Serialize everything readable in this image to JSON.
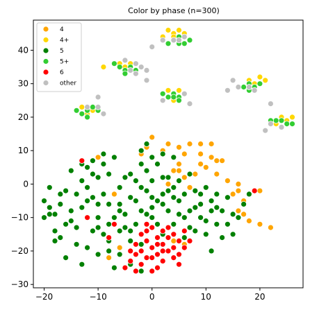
{
  "chart_data": {
    "type": "scatter",
    "title": "Color by phase (n=300)",
    "xlabel": "",
    "ylabel": "",
    "xlim": [
      -22,
      28
    ],
    "ylim": [
      -31,
      49
    ],
    "xticks": [
      -20,
      -10,
      0,
      10,
      20
    ],
    "yticks": [
      -30,
      -20,
      -10,
      0,
      10,
      20,
      30,
      40
    ],
    "xtick_labels": [
      "−20",
      "−10",
      "0",
      "10",
      "20"
    ],
    "ytick_labels": [
      "−30",
      "−20",
      "−10",
      "0",
      "10",
      "20",
      "30",
      "40"
    ],
    "grid": false,
    "legend_position": "top-left",
    "series": [
      {
        "name": "4",
        "color": "#ffa500",
        "points": [
          [
            3,
            12
          ],
          [
            5,
            11
          ],
          [
            7,
            12
          ],
          [
            9,
            9
          ],
          [
            11,
            8
          ],
          [
            12,
            7
          ],
          [
            13,
            7
          ],
          [
            10,
            5
          ],
          [
            8,
            3
          ],
          [
            6,
            2
          ],
          [
            5,
            6
          ],
          [
            4,
            4
          ],
          [
            2,
            10
          ],
          [
            -1,
            11
          ],
          [
            -2,
            9
          ],
          [
            0,
            14
          ],
          [
            9,
            6
          ],
          [
            12,
            3
          ],
          [
            14,
            1
          ],
          [
            16,
            0
          ],
          [
            15,
            -3
          ],
          [
            17,
            -5
          ],
          [
            16,
            -8
          ],
          [
            17,
            -9
          ],
          [
            18,
            -11
          ],
          [
            20,
            -12
          ],
          [
            22,
            -13
          ],
          [
            20,
            -2
          ],
          [
            3,
            0
          ],
          [
            -7,
            -3
          ],
          [
            -10,
            8
          ],
          [
            -6,
            -19
          ],
          [
            -8,
            -22
          ],
          [
            4,
            -17
          ],
          [
            6,
            -18
          ],
          [
            7,
            -1
          ],
          [
            9,
            12
          ],
          [
            11,
            12
          ],
          [
            16,
            -2
          ],
          [
            6,
            9
          ],
          [
            5,
            4
          ]
        ]
      },
      {
        "name": "4+",
        "color": "#ffd700",
        "points": [
          [
            3,
            46
          ],
          [
            4,
            45
          ],
          [
            5,
            46
          ],
          [
            6,
            45
          ],
          [
            4,
            44
          ],
          [
            2,
            44
          ],
          [
            18,
            31
          ],
          [
            20,
            32
          ],
          [
            21,
            31
          ],
          [
            19,
            30
          ],
          [
            -6,
            36
          ],
          [
            -4,
            36
          ],
          [
            -5,
            35
          ],
          [
            3,
            28
          ],
          [
            5,
            28
          ],
          [
            4,
            25
          ],
          [
            -13,
            23
          ],
          [
            -11,
            22
          ],
          [
            -12,
            21
          ],
          [
            24,
            20
          ],
          [
            25,
            19
          ],
          [
            26,
            20
          ],
          [
            23,
            18
          ],
          [
            -9,
            35
          ]
        ]
      },
      {
        "name": "5",
        "color": "#008000",
        "points": [
          [
            -20,
            -5
          ],
          [
            -19,
            -1
          ],
          [
            -18,
            -9
          ],
          [
            -17,
            -16
          ],
          [
            -16,
            -12
          ],
          [
            -15,
            -8
          ],
          [
            -14,
            -3
          ],
          [
            -13,
            1
          ],
          [
            -12,
            5
          ],
          [
            -11,
            -4
          ],
          [
            -10,
            -10
          ],
          [
            -9,
            -15
          ],
          [
            -8,
            -20
          ],
          [
            -7,
            -25
          ],
          [
            -6,
            -14
          ],
          [
            -5,
            -9
          ],
          [
            -4,
            -4
          ],
          [
            -3,
            1
          ],
          [
            -2,
            6
          ],
          [
            -1,
            -2
          ],
          [
            0,
            -7
          ],
          [
            1,
            -12
          ],
          [
            2,
            -3
          ],
          [
            3,
            2
          ],
          [
            4,
            8
          ],
          [
            5,
            -5
          ],
          [
            6,
            -10
          ],
          [
            7,
            3
          ],
          [
            8,
            -2
          ],
          [
            9,
            -6
          ],
          [
            10,
            -1
          ],
          [
            11,
            -8
          ],
          [
            12,
            -12
          ],
          [
            13,
            -16
          ],
          [
            14,
            -4
          ],
          [
            15,
            -9
          ],
          [
            -15,
            4
          ],
          [
            -16,
            -2
          ],
          [
            -17,
            -6
          ],
          [
            -18,
            -14
          ],
          [
            -19,
            -9
          ],
          [
            -12,
            -19
          ],
          [
            -11,
            -14
          ],
          [
            -13,
            -24
          ],
          [
            -10,
            -21
          ],
          [
            -9,
            -3
          ],
          [
            -8,
            3
          ],
          [
            -7,
            8
          ],
          [
            -6,
            -6
          ],
          [
            -5,
            2
          ],
          [
            -4,
            -17
          ],
          [
            -3,
            -12
          ],
          [
            -2,
            -8
          ],
          [
            -1,
            4
          ],
          [
            0,
            1
          ],
          [
            1,
            6
          ],
          [
            2,
            -15
          ],
          [
            3,
            -8
          ],
          [
            4,
            -1
          ],
          [
            5,
            1
          ],
          [
            6,
            -3
          ],
          [
            7,
            -8
          ],
          [
            8,
            -14
          ],
          [
            9,
            -10
          ],
          [
            10,
            -15
          ],
          [
            11,
            -20
          ],
          [
            12,
            -3
          ],
          [
            13,
            -8
          ],
          [
            14,
            -12
          ],
          [
            15,
            -15
          ],
          [
            16,
            -10
          ],
          [
            17,
            -6
          ],
          [
            18,
            -3
          ],
          [
            19,
            -2
          ],
          [
            -20,
            -10
          ],
          [
            -18,
            -17
          ],
          [
            -16,
            -22
          ],
          [
            -14,
            -18
          ],
          [
            -12,
            -10
          ],
          [
            -10,
            -6
          ],
          [
            -8,
            -12
          ],
          [
            -6,
            -8
          ],
          [
            -4,
            -14
          ],
          [
            -2,
            -18
          ],
          [
            0,
            -10
          ],
          [
            2,
            -6
          ],
          [
            4,
            -12
          ],
          [
            6,
            -16
          ],
          [
            8,
            -7
          ],
          [
            10,
            -11
          ],
          [
            12,
            -7
          ],
          [
            -12,
            -1
          ],
          [
            -10,
            2
          ],
          [
            -8,
            -6
          ],
          [
            -6,
            -1
          ],
          [
            -4,
            3
          ],
          [
            -2,
            -1
          ],
          [
            0,
            -4
          ],
          [
            2,
            2
          ],
          [
            4,
            -4
          ],
          [
            -14,
            -13
          ],
          [
            -12,
            -5
          ],
          [
            -10,
            -13
          ],
          [
            -8,
            -17
          ],
          [
            -6,
            -21
          ],
          [
            -4,
            -24
          ],
          [
            -2,
            -26
          ],
          [
            -11,
            3
          ],
          [
            -9,
            6
          ],
          [
            -7,
            -10
          ],
          [
            -5,
            -13
          ],
          [
            -3,
            -5
          ],
          [
            -1,
            -9
          ],
          [
            1,
            -5
          ],
          [
            3,
            -2
          ],
          [
            5,
            -9
          ],
          [
            7,
            -13
          ],
          [
            9,
            -3
          ],
          [
            11,
            -5
          ],
          [
            -13,
            -7
          ],
          [
            -15,
            -11
          ],
          [
            -17,
            -3
          ],
          [
            -19,
            -7
          ],
          [
            0,
            8
          ],
          [
            -2,
            10
          ],
          [
            2,
            9
          ],
          [
            -9,
            9
          ],
          [
            -11,
            7
          ],
          [
            -13,
            6
          ],
          [
            -1,
            12
          ]
        ]
      },
      {
        "name": "5+",
        "color": "#32cd32",
        "points": [
          [
            3,
            42
          ],
          [
            4,
            43
          ],
          [
            5,
            44
          ],
          [
            6,
            42
          ],
          [
            7,
            43
          ],
          [
            5,
            42
          ],
          [
            -7,
            36
          ],
          [
            -5,
            34
          ],
          [
            -4,
            35
          ],
          [
            -6,
            35
          ],
          [
            -5,
            33
          ],
          [
            -3,
            34
          ],
          [
            2,
            27
          ],
          [
            3,
            26
          ],
          [
            4,
            27
          ],
          [
            5,
            26
          ],
          [
            6,
            27
          ],
          [
            4,
            26
          ],
          [
            17,
            29
          ],
          [
            18,
            30
          ],
          [
            19,
            29
          ],
          [
            20,
            30
          ],
          [
            18,
            28
          ],
          [
            -14,
            22
          ],
          [
            -12,
            22
          ],
          [
            -11,
            23
          ],
          [
            -13,
            21
          ],
          [
            -10,
            22
          ],
          [
            23,
            19
          ],
          [
            25,
            18
          ],
          [
            24,
            19
          ],
          [
            26,
            18
          ],
          [
            22,
            19
          ],
          [
            19,
            28
          ],
          [
            5,
            25
          ],
          [
            -12,
            20
          ]
        ]
      },
      {
        "name": "6",
        "color": "#ff0000",
        "points": [
          [
            -2,
            -15
          ],
          [
            -1,
            -17
          ],
          [
            0,
            -19
          ],
          [
            1,
            -21
          ],
          [
            2,
            -23
          ],
          [
            3,
            -20
          ],
          [
            4,
            -22
          ],
          [
            5,
            -24
          ],
          [
            2,
            -18
          ],
          [
            1,
            -25
          ],
          [
            0,
            -26
          ],
          [
            -1,
            -22
          ],
          [
            -2,
            -24
          ],
          [
            -3,
            -26
          ],
          [
            -4,
            -23
          ],
          [
            -5,
            -25
          ],
          [
            3,
            -13
          ],
          [
            4,
            -15
          ],
          [
            5,
            -17
          ],
          [
            6,
            -19
          ],
          [
            0,
            -13
          ],
          [
            -1,
            -12
          ],
          [
            -3,
            -18
          ],
          [
            -4,
            -20
          ],
          [
            -13,
            7
          ],
          [
            19,
            -2
          ],
          [
            -12,
            -10
          ],
          [
            -8,
            -16
          ],
          [
            -7,
            -12
          ],
          [
            1,
            -16
          ],
          [
            2,
            -14
          ],
          [
            3,
            -16
          ],
          [
            4,
            -19
          ],
          [
            5,
            -21
          ],
          [
            6,
            -14
          ],
          [
            7,
            -17
          ],
          [
            -2,
            -20
          ],
          [
            -1,
            -14
          ],
          [
            0,
            -22
          ],
          [
            1,
            -18
          ],
          [
            2,
            -20
          ],
          [
            -3,
            -21
          ]
        ]
      },
      {
        "name": "other",
        "color": "#c0c0c0",
        "points": [
          [
            0,
            41
          ],
          [
            4,
            43
          ],
          [
            6,
            44
          ],
          [
            2,
            43
          ],
          [
            5,
            43
          ],
          [
            -1,
            34
          ],
          [
            -4,
            34
          ],
          [
            -3,
            36
          ],
          [
            -1,
            31
          ],
          [
            6,
            27
          ],
          [
            7,
            24
          ],
          [
            2,
            25
          ],
          [
            15,
            31
          ],
          [
            16,
            29
          ],
          [
            18,
            29
          ],
          [
            19,
            28
          ],
          [
            14,
            28
          ],
          [
            -9,
            21
          ],
          [
            -10,
            23
          ],
          [
            -12,
            23
          ],
          [
            -10,
            26
          ],
          [
            22,
            24
          ],
          [
            21,
            16
          ],
          [
            24,
            17
          ],
          [
            22,
            18
          ],
          [
            -5,
            37
          ],
          [
            -2,
            35
          ],
          [
            -3,
            33
          ]
        ]
      }
    ]
  }
}
